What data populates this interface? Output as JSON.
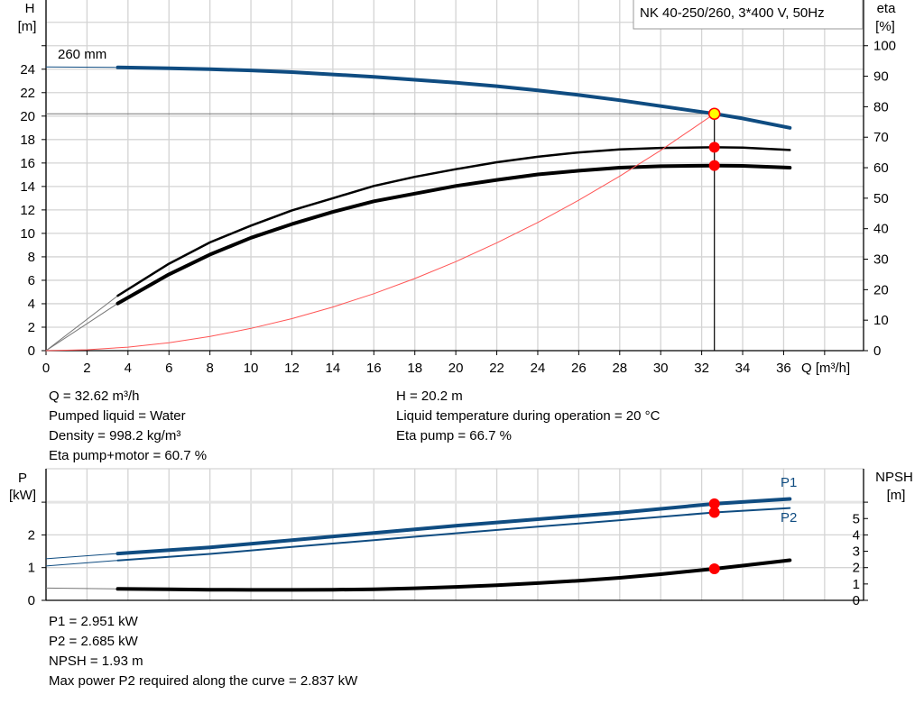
{
  "chart_data": [
    {
      "type": "line",
      "title": "NK 40-250/260, 3*400 V, 50Hz",
      "xlabel": "Q [m³/h]",
      "ylabel_left": [
        "H",
        "[m]"
      ],
      "ylabel_right": [
        "eta",
        "[%]"
      ],
      "xlim": [
        0,
        39.9
      ],
      "ylim_left": [
        0,
        29.9
      ],
      "ylim_right": [
        0,
        115
      ],
      "x_ticks": [
        0,
        2,
        4,
        6,
        8,
        10,
        12,
        14,
        16,
        18,
        20,
        22,
        24,
        26,
        28,
        30,
        32,
        34,
        36
      ],
      "y_left_ticks": [
        0,
        2,
        4,
        6,
        8,
        10,
        12,
        14,
        16,
        18,
        20,
        22,
        24
      ],
      "y_right_ticks": [
        0,
        10,
        20,
        30,
        40,
        50,
        60,
        70,
        80,
        90,
        100
      ],
      "grid": true,
      "curve_label": "260 mm",
      "series": [
        {
          "axis": "left",
          "color": "#0f4c81",
          "x": [
            3.5,
            6,
            8,
            10,
            12,
            14,
            16,
            18,
            20,
            22,
            24,
            26,
            28,
            30,
            32,
            32.62,
            34,
            36.3
          ],
          "y": [
            24.15,
            24.08,
            24.0,
            23.9,
            23.75,
            23.55,
            23.35,
            23.1,
            22.85,
            22.55,
            22.2,
            21.8,
            21.35,
            20.85,
            20.35,
            20.2,
            19.8,
            19.0
          ],
          "extension": {
            "x": [
              0,
              3.5
            ],
            "y": [
              24.2,
              24.15
            ]
          }
        },
        {
          "axis": "right",
          "color": "#000000",
          "x": [
            3.5,
            6,
            8,
            10,
            12,
            14,
            16,
            18,
            20,
            22,
            24,
            26,
            28,
            30,
            32.62,
            34,
            36.3
          ],
          "y": [
            18,
            28.5,
            35.5,
            41,
            46,
            50,
            54,
            57,
            59.5,
            61.8,
            63.6,
            65,
            66,
            66.5,
            66.7,
            66.6,
            65.8
          ],
          "extension": {
            "x": [
              0,
              3.5
            ],
            "y": [
              0,
              18
            ]
          }
        },
        {
          "axis": "right",
          "color": "#000000",
          "x": [
            3.5,
            6,
            8,
            10,
            12,
            14,
            16,
            18,
            20,
            22,
            24,
            26,
            28,
            30,
            32.62,
            34,
            36.3
          ],
          "y": [
            15.5,
            25,
            31.5,
            37,
            41.5,
            45.5,
            49,
            51.5,
            54,
            56,
            57.8,
            59,
            60,
            60.5,
            60.7,
            60.6,
            60
          ],
          "extension": {
            "x": [
              0,
              3.5
            ],
            "y": [
              0,
              15.5
            ]
          }
        },
        {
          "axis": "left",
          "color": "#ff5555",
          "type": "system",
          "x": [
            0,
            2,
            4,
            6,
            8,
            10,
            12,
            14,
            16,
            18,
            20,
            22,
            24,
            26,
            28,
            30,
            32.62
          ],
          "y": [
            0,
            0.08,
            0.3,
            0.68,
            1.21,
            1.9,
            2.73,
            3.72,
            4.86,
            6.15,
            7.59,
            9.19,
            10.93,
            12.83,
            14.88,
            17.08,
            20.2
          ]
        }
      ],
      "operating_point": {
        "q": 32.62,
        "h": 20.2,
        "eta_pump": 66.7,
        "eta_total": 60.7
      }
    },
    {
      "type": "line",
      "ylabel_left": [
        "P",
        "[kW]"
      ],
      "ylabel_right": [
        "NPSH",
        "[m]"
      ],
      "xlim": [
        0,
        39.9
      ],
      "ylim_left": [
        0,
        4.0
      ],
      "ylim_right": [
        0,
        8.0
      ],
      "y_left_ticks": [
        0,
        1,
        2
      ],
      "y_right_ticks": [
        0,
        1,
        2,
        3,
        4,
        5
      ],
      "grid": true,
      "series": [
        {
          "name": "P1",
          "axis": "left",
          "color": "#0f4c81",
          "x": [
            3.5,
            8,
            12,
            16,
            20,
            24,
            28,
            32.62,
            36.3
          ],
          "y": [
            1.43,
            1.62,
            1.84,
            2.06,
            2.28,
            2.48,
            2.68,
            2.951,
            3.1
          ],
          "extension": {
            "x": [
              0,
              3.5
            ],
            "y": [
              1.27,
              1.43
            ]
          }
        },
        {
          "name": "P2",
          "axis": "left",
          "color": "#0f4c81",
          "x": [
            3.5,
            8,
            12,
            16,
            20,
            24,
            28,
            32.62,
            36.3
          ],
          "y": [
            1.22,
            1.42,
            1.63,
            1.84,
            2.05,
            2.25,
            2.45,
            2.685,
            2.82
          ],
          "extension": {
            "x": [
              0,
              3.5
            ],
            "y": [
              1.05,
              1.22
            ]
          }
        },
        {
          "axis": "right",
          "color": "#000000",
          "x": [
            3.5,
            6,
            8,
            10,
            12,
            14,
            16,
            18,
            20,
            22,
            24,
            26,
            28,
            30,
            32.62,
            34,
            36.3
          ],
          "y": [
            0.7,
            0.67,
            0.65,
            0.64,
            0.64,
            0.65,
            0.68,
            0.74,
            0.82,
            0.92,
            1.05,
            1.2,
            1.38,
            1.6,
            1.93,
            2.12,
            2.45
          ],
          "extension": {
            "x": [
              0,
              3.5
            ],
            "y": [
              0.75,
              0.7
            ]
          }
        }
      ],
      "operating_point": {
        "q": 32.62,
        "p1": 2.951,
        "p2": 2.685,
        "npsh": 1.93
      }
    }
  ],
  "info_top": {
    "left": [
      "Q = 32.62 m³/h",
      "Pumped liquid = Water",
      "Density = 998.2 kg/m³",
      "Eta pump+motor = 60.7 %"
    ],
    "right": [
      "H = 20.2 m",
      "Liquid temperature during operation = 20 °C",
      "Eta pump = 66.7 %"
    ]
  },
  "info_bottom": [
    "P1 = 2.951 kW",
    "P2 = 2.685 kW",
    "NPSH = 1.93 m",
    "Max power P2 required along the curve = 2.837 kW"
  ],
  "colors": {
    "grid": "#d4d4d4",
    "marker": "#ff0000",
    "op_point": "#ffff00",
    "blue": "#0f4c81",
    "system": "#ff5555"
  }
}
